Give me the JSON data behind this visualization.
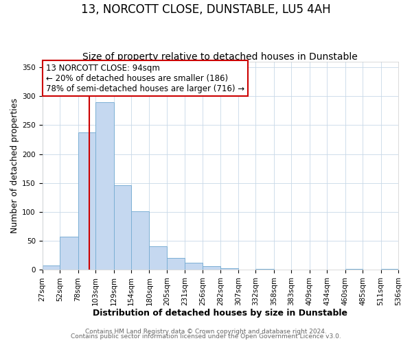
{
  "title": "13, NORCOTT CLOSE, DUNSTABLE, LU5 4AH",
  "subtitle": "Size of property relative to detached houses in Dunstable",
  "xlabel": "Distribution of detached houses by size in Dunstable",
  "ylabel": "Number of detached properties",
  "bin_edges": [
    27,
    52,
    78,
    103,
    129,
    154,
    180,
    205,
    231,
    256,
    282,
    307,
    332,
    358,
    383,
    409,
    434,
    460,
    485,
    511,
    536
  ],
  "bar_heights": [
    8,
    57,
    238,
    290,
    146,
    101,
    41,
    21,
    12,
    6,
    3,
    0,
    2,
    0,
    0,
    0,
    0,
    2,
    0,
    2
  ],
  "bar_color": "#c5d8f0",
  "bar_edge_color": "#7bafd4",
  "vline_x": 94,
  "vline_color": "#cc0000",
  "ylim": [
    0,
    360
  ],
  "yticks": [
    0,
    50,
    100,
    150,
    200,
    250,
    300,
    350
  ],
  "tick_labels": [
    "27sqm",
    "52sqm",
    "78sqm",
    "103sqm",
    "129sqm",
    "154sqm",
    "180sqm",
    "205sqm",
    "231sqm",
    "256sqm",
    "282sqm",
    "307sqm",
    "332sqm",
    "358sqm",
    "383sqm",
    "409sqm",
    "434sqm",
    "460sqm",
    "485sqm",
    "511sqm",
    "536sqm"
  ],
  "annotation_text": "13 NORCOTT CLOSE: 94sqm\n← 20% of detached houses are smaller (186)\n78% of semi-detached houses are larger (716) →",
  "annotation_box_color": "#ffffff",
  "annotation_box_edge_color": "#cc0000",
  "footer_line1": "Contains HM Land Registry data © Crown copyright and database right 2024.",
  "footer_line2": "Contains public sector information licensed under the Open Government Licence v3.0.",
  "bg_color": "#ffffff",
  "plot_bg_color": "#ffffff",
  "grid_color": "#c8d8e8",
  "title_fontsize": 12,
  "subtitle_fontsize": 10,
  "axis_label_fontsize": 9,
  "tick_fontsize": 7.5,
  "annotation_fontsize": 8.5,
  "footer_fontsize": 6.5
}
